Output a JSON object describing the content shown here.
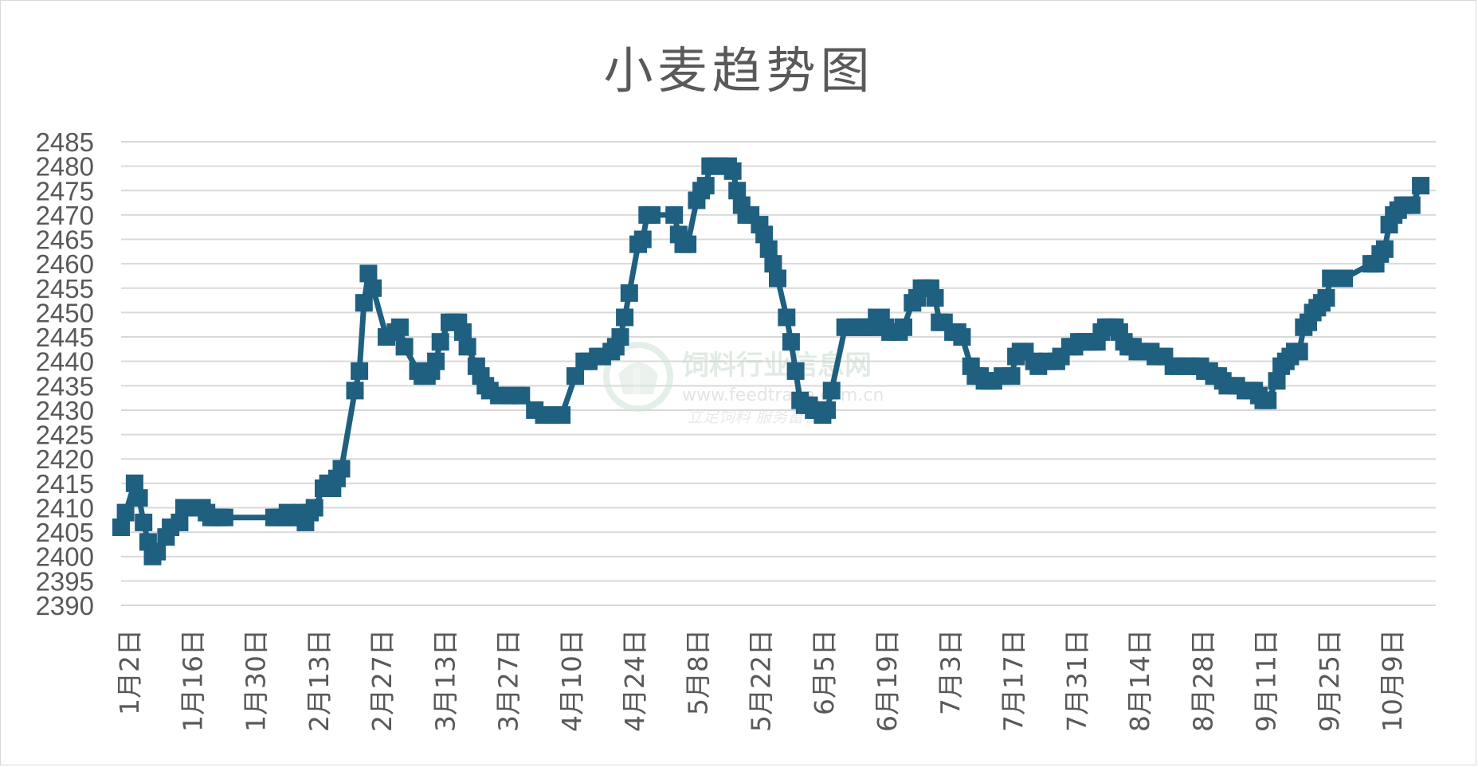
{
  "chart_data": {
    "type": "line",
    "title": "小麦趋势图",
    "ylim": [
      2390,
      2485
    ],
    "yticks": [
      2390,
      2395,
      2400,
      2405,
      2410,
      2415,
      2420,
      2425,
      2430,
      2435,
      2440,
      2445,
      2450,
      2455,
      2460,
      2465,
      2470,
      2475,
      2480,
      2485
    ],
    "xtick_labels": [
      "1月2日",
      "1月16日",
      "1月30日",
      "2月13日",
      "2月27日",
      "3月13日",
      "3月27日",
      "4月10日",
      "4月24日",
      "5月8日",
      "5月22日",
      "6月5日",
      "6月19日",
      "7月3日",
      "7月17日",
      "7月31日",
      "8月14日",
      "8月28日",
      "9月11日",
      "9月25日",
      "10月9日"
    ],
    "x_range_days": [
      0,
      292
    ],
    "grid": true,
    "legend": "none",
    "marker": "square",
    "series": [
      {
        "color": "#1f5f7f",
        "points": [
          [
            0,
            2406
          ],
          [
            1,
            2409
          ],
          [
            3,
            2415
          ],
          [
            4,
            2412
          ],
          [
            5,
            2407
          ],
          [
            6,
            2403
          ],
          [
            7,
            2400
          ],
          [
            8,
            2401
          ],
          [
            10,
            2404
          ],
          [
            11,
            2406
          ],
          [
            13,
            2407
          ],
          [
            14,
            2410
          ],
          [
            15,
            2410
          ],
          [
            16,
            2410
          ],
          [
            17,
            2410
          ],
          [
            18,
            2410
          ],
          [
            19,
            2409
          ],
          [
            20,
            2408
          ],
          [
            21,
            2408
          ],
          [
            22,
            2408
          ],
          [
            23,
            2408
          ],
          [
            34,
            2408
          ],
          [
            35,
            2408
          ],
          [
            36,
            2408
          ],
          [
            37,
            2409
          ],
          [
            38,
            2408
          ],
          [
            39,
            2408
          ],
          [
            40,
            2409
          ],
          [
            41,
            2407
          ],
          [
            42,
            2409
          ],
          [
            43,
            2410
          ],
          [
            45,
            2414
          ],
          [
            46,
            2415
          ],
          [
            47,
            2414
          ],
          [
            48,
            2416
          ],
          [
            49,
            2418
          ],
          [
            52,
            2434
          ],
          [
            53,
            2438
          ],
          [
            54,
            2452
          ],
          [
            55,
            2458
          ],
          [
            56,
            2455
          ],
          [
            59,
            2445
          ],
          [
            61,
            2446
          ],
          [
            62,
            2447
          ],
          [
            63,
            2443
          ],
          [
            66,
            2438
          ],
          [
            67,
            2437
          ],
          [
            68,
            2437
          ],
          [
            69,
            2438
          ],
          [
            70,
            2440
          ],
          [
            71,
            2444
          ],
          [
            73,
            2448
          ],
          [
            74,
            2448
          ],
          [
            75,
            2448
          ],
          [
            76,
            2446
          ],
          [
            77,
            2443
          ],
          [
            79,
            2439
          ],
          [
            80,
            2437
          ],
          [
            81,
            2435
          ],
          [
            82,
            2434
          ],
          [
            84,
            2433
          ],
          [
            86,
            2433
          ],
          [
            88,
            2433
          ],
          [
            89,
            2433
          ],
          [
            92,
            2430
          ],
          [
            94,
            2429
          ],
          [
            96,
            2429
          ],
          [
            98,
            2429
          ],
          [
            101,
            2437
          ],
          [
            103,
            2440
          ],
          [
            104,
            2440
          ],
          [
            106,
            2441
          ],
          [
            107,
            2441
          ],
          [
            109,
            2442
          ],
          [
            110,
            2443
          ],
          [
            111,
            2445
          ],
          [
            112,
            2449
          ],
          [
            113,
            2454
          ],
          [
            115,
            2464
          ],
          [
            116,
            2465
          ],
          [
            117,
            2470
          ],
          [
            118,
            2470
          ],
          [
            123,
            2470
          ],
          [
            124,
            2466
          ],
          [
            125,
            2464
          ],
          [
            126,
            2464
          ],
          [
            128,
            2473
          ],
          [
            129,
            2475
          ],
          [
            130,
            2476
          ],
          [
            131,
            2480
          ],
          [
            132,
            2480
          ],
          [
            133,
            2480
          ],
          [
            135,
            2480
          ],
          [
            136,
            2479
          ],
          [
            137,
            2475
          ],
          [
            138,
            2472
          ],
          [
            139,
            2470
          ],
          [
            140,
            2470
          ],
          [
            142,
            2468
          ],
          [
            143,
            2466
          ],
          [
            144,
            2463
          ],
          [
            145,
            2460
          ],
          [
            146,
            2457
          ],
          [
            148,
            2449
          ],
          [
            149,
            2444
          ],
          [
            150,
            2438
          ],
          [
            151,
            2432
          ],
          [
            152,
            2431
          ],
          [
            153,
            2431
          ],
          [
            154,
            2430
          ],
          [
            155,
            2430
          ],
          [
            156,
            2429
          ],
          [
            157,
            2430
          ],
          [
            158,
            2434
          ],
          [
            161,
            2447
          ],
          [
            162,
            2447
          ],
          [
            164,
            2447
          ],
          [
            165,
            2447
          ],
          [
            166,
            2447
          ],
          [
            167,
            2447
          ],
          [
            168,
            2449
          ],
          [
            169,
            2449
          ],
          [
            170,
            2447
          ],
          [
            171,
            2446
          ],
          [
            173,
            2446
          ],
          [
            174,
            2447
          ],
          [
            176,
            2452
          ],
          [
            177,
            2453
          ],
          [
            178,
            2455
          ],
          [
            179,
            2455
          ],
          [
            180,
            2455
          ],
          [
            181,
            2453
          ],
          [
            182,
            2448
          ],
          [
            183,
            2448
          ],
          [
            185,
            2446
          ],
          [
            186,
            2446
          ],
          [
            187,
            2445
          ],
          [
            189,
            2439
          ],
          [
            190,
            2437
          ],
          [
            191,
            2437
          ],
          [
            192,
            2436
          ],
          [
            193,
            2436
          ],
          [
            194,
            2436
          ],
          [
            196,
            2437
          ],
          [
            198,
            2437
          ],
          [
            199,
            2441
          ],
          [
            200,
            2442
          ],
          [
            201,
            2442
          ],
          [
            203,
            2440
          ],
          [
            204,
            2439
          ],
          [
            206,
            2440
          ],
          [
            208,
            2440
          ],
          [
            209,
            2441
          ],
          [
            211,
            2443
          ],
          [
            212,
            2443
          ],
          [
            213,
            2444
          ],
          [
            214,
            2444
          ],
          [
            215,
            2444
          ],
          [
            216,
            2444
          ],
          [
            217,
            2444
          ],
          [
            218,
            2446
          ],
          [
            219,
            2447
          ],
          [
            220,
            2447
          ],
          [
            221,
            2447
          ],
          [
            222,
            2446
          ],
          [
            223,
            2444
          ],
          [
            224,
            2443
          ],
          [
            225,
            2443
          ],
          [
            226,
            2442
          ],
          [
            227,
            2442
          ],
          [
            229,
            2442
          ],
          [
            230,
            2441
          ],
          [
            231,
            2441
          ],
          [
            232,
            2441
          ],
          [
            234,
            2439
          ],
          [
            235,
            2439
          ],
          [
            237,
            2439
          ],
          [
            238,
            2439
          ],
          [
            240,
            2439
          ],
          [
            241,
            2438
          ],
          [
            242,
            2438
          ],
          [
            243,
            2437
          ],
          [
            244,
            2437
          ],
          [
            245,
            2436
          ],
          [
            246,
            2435
          ],
          [
            248,
            2435
          ],
          [
            250,
            2434
          ],
          [
            251,
            2434
          ],
          [
            252,
            2434
          ],
          [
            253,
            2433
          ],
          [
            254,
            2432
          ],
          [
            255,
            2432
          ],
          [
            257,
            2436
          ],
          [
            258,
            2439
          ],
          [
            259,
            2440
          ],
          [
            260,
            2441
          ],
          [
            261,
            2442
          ],
          [
            262,
            2442
          ],
          [
            263,
            2447
          ],
          [
            264,
            2448
          ],
          [
            265,
            2450
          ],
          [
            266,
            2451
          ],
          [
            267,
            2452
          ],
          [
            268,
            2453
          ],
          [
            269,
            2457
          ],
          [
            270,
            2457
          ],
          [
            272,
            2457
          ],
          [
            278,
            2460
          ],
          [
            279,
            2460
          ],
          [
            280,
            2462
          ],
          [
            281,
            2463
          ],
          [
            282,
            2468
          ],
          [
            283,
            2470
          ],
          [
            284,
            2471
          ],
          [
            285,
            2472
          ],
          [
            286,
            2472
          ],
          [
            287,
            2472
          ],
          [
            289,
            2476
          ]
        ]
      }
    ]
  },
  "watermark": {
    "site_name": "饲料行业信息网",
    "url": "www.feedtrade.com.cn",
    "slogan": "立足饲料   服务畜牧"
  }
}
